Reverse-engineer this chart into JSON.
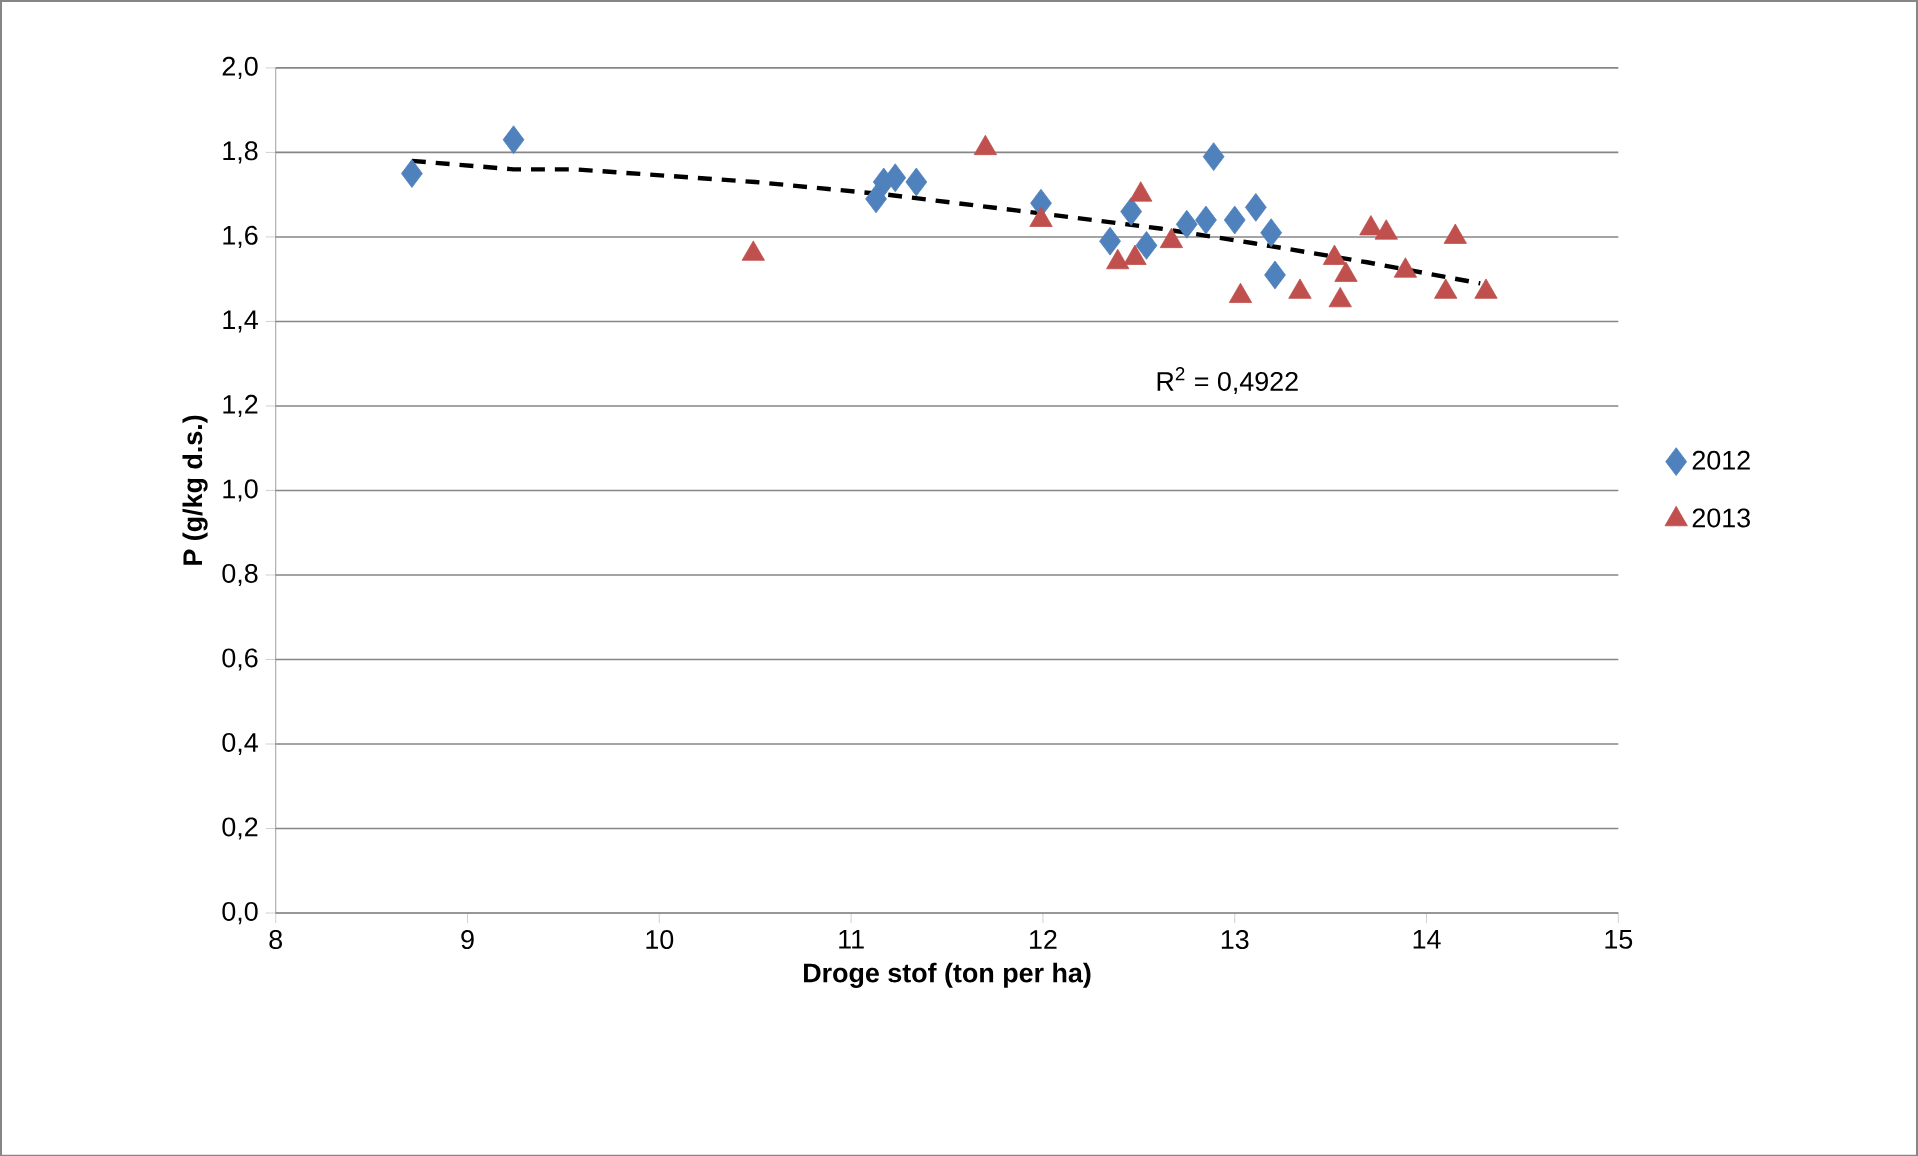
{
  "chart_data": {
    "type": "scatter",
    "xlabel": "Droge stof (ton per ha)",
    "ylabel": "P (g/kg d.s.)",
    "xlim": [
      8,
      15
    ],
    "xticks": [
      8,
      9,
      10,
      11,
      12,
      13,
      14,
      15
    ],
    "ylim": [
      0,
      2.0
    ],
    "yticks": [
      {
        "value": 0,
        "label": "0,0"
      },
      {
        "value": 0.2,
        "label": "0,2"
      },
      {
        "value": 0.4,
        "label": "0,4"
      },
      {
        "value": 0.6,
        "label": "0,6"
      },
      {
        "value": 0.8,
        "label": "0,8"
      },
      {
        "value": 1.0,
        "label": "1,0"
      },
      {
        "value": 1.2,
        "label": "1,2"
      },
      {
        "value": 1.4,
        "label": "1,4"
      },
      {
        "value": 1.6,
        "label": "1,6"
      },
      {
        "value": 1.8,
        "label": "1,8"
      },
      {
        "value": 2.0,
        "label": "2,0"
      }
    ],
    "grid": "y",
    "legend": "right",
    "series": [
      {
        "name": "2012",
        "color": "#4f81bd",
        "marker": "diamond",
        "x": [
          8.71,
          9.24,
          11.13,
          11.17,
          11.23,
          11.34,
          11.99,
          12.35,
          12.46,
          12.54,
          12.75,
          12.85,
          12.89,
          13.0,
          13.11,
          13.19,
          13.21
        ],
        "values": [
          1.75,
          1.83,
          1.69,
          1.73,
          1.74,
          1.73,
          1.68,
          1.59,
          1.66,
          1.58,
          1.63,
          1.64,
          1.79,
          1.64,
          1.67,
          1.61,
          1.51
        ]
      },
      {
        "name": "2013",
        "color": "#c0504d",
        "marker": "triangle",
        "x": [
          10.49,
          11.7,
          11.99,
          12.39,
          12.48,
          12.51,
          12.67,
          13.03,
          13.34,
          13.52,
          13.55,
          13.58,
          13.71,
          13.79,
          13.89,
          14.1,
          14.15,
          14.31
        ],
        "values": [
          1.56,
          1.81,
          1.64,
          1.54,
          1.55,
          1.7,
          1.59,
          1.46,
          1.47,
          1.55,
          1.45,
          1.51,
          1.62,
          1.61,
          1.52,
          1.47,
          1.6,
          1.47
        ]
      },
      {
        "type": "line",
        "color": "#000000",
        "marker": "none",
        "line_style": "dashed",
        "x": [
          8.71,
          9.24,
          9.56,
          10.5,
          11.19,
          12.0,
          12.61,
          13.1,
          13.69,
          14.28
        ],
        "values": [
          1.78,
          1.76,
          1.76,
          1.73,
          1.7,
          1.655,
          1.62,
          1.585,
          1.54,
          1.49
        ]
      }
    ],
    "annotations": [
      "R$^{2}$ = 0,4922"
    ]
  }
}
